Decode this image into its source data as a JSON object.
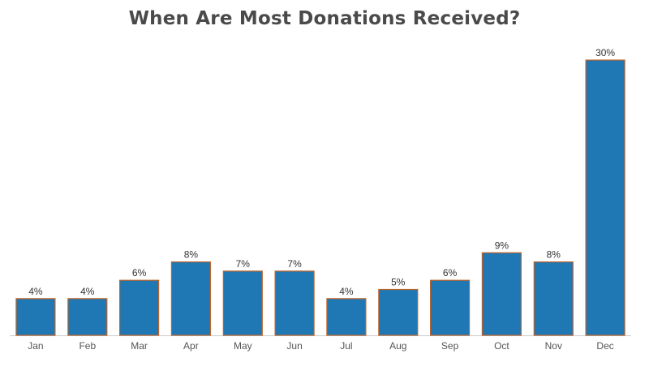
{
  "chart_data": {
    "type": "bar",
    "title": "When Are Most Donations Received?",
    "xlabel": "",
    "ylabel": "",
    "categories": [
      "Jan",
      "Feb",
      "Mar",
      "Apr",
      "May",
      "Jun",
      "Jul",
      "Aug",
      "Sep",
      "Oct",
      "Nov",
      "Dec"
    ],
    "values": [
      4,
      4,
      6,
      8,
      7,
      7,
      4,
      5,
      6,
      9,
      8,
      30
    ],
    "data_labels": [
      "4%",
      "4%",
      "6%",
      "8%",
      "7%",
      "7%",
      "4%",
      "5%",
      "6%",
      "9%",
      "8%",
      "30%"
    ],
    "unit": "%",
    "ylim": [
      0,
      30
    ],
    "grid": false,
    "legend": "none",
    "colors": {
      "bar_fill": "#1f77b4",
      "bar_outline": "#c0642a",
      "axis": "#cccccc"
    }
  }
}
